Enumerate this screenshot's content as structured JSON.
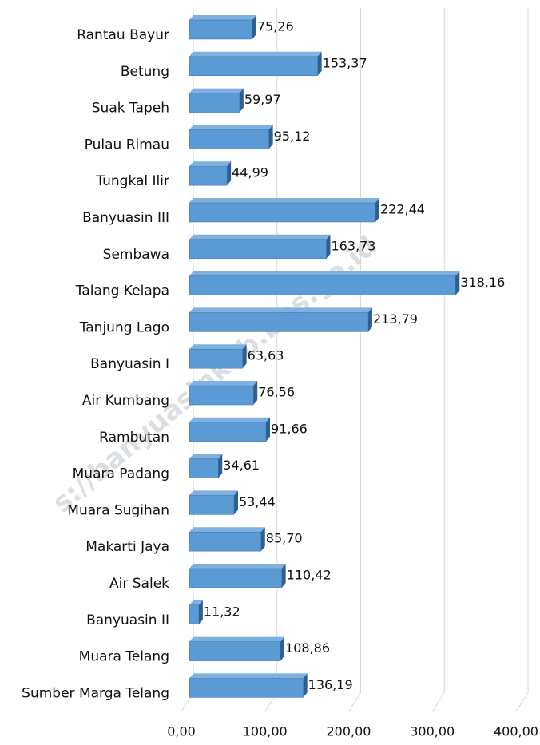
{
  "chart_data": {
    "type": "bar3d_horizontal",
    "categories": [
      "Rantau Bayur",
      "Betung",
      "Suak Tapeh",
      "Pulau Rimau",
      "Tungkal Ilir",
      "Banyuasin III",
      "Sembawa",
      "Talang Kelapa",
      "Tanjung Lago",
      "Banyuasin I",
      "Air Kumbang",
      "Rambutan",
      "Muara Padang",
      "Muara Sugihan",
      "Makarti Jaya",
      "Air Salek",
      "Banyuasin II",
      "Muara Telang",
      "Sumber Marga Telang"
    ],
    "values": [
      75.26,
      153.37,
      59.97,
      95.12,
      44.99,
      222.44,
      163.73,
      318.16,
      213.79,
      63.63,
      76.56,
      91.66,
      34.61,
      53.44,
      85.7,
      110.42,
      11.32,
      108.86,
      136.19
    ],
    "value_labels": [
      "75,26",
      "153,37",
      "59,97",
      "95,12",
      "44,99",
      "222,44",
      "163,73",
      "318,16",
      "213,79",
      "63,63",
      "76,56",
      "91,66",
      "34,61",
      "53,44",
      "85,70",
      "110,42",
      "11,32",
      "108,86",
      "136,19"
    ],
    "color": "#5b9bd5",
    "xlim": [
      0,
      400
    ],
    "xticks": [
      {
        "value": 0,
        "label": "0,00"
      },
      {
        "value": 100,
        "label": "100,00"
      },
      {
        "value": 200,
        "label": "200,00"
      },
      {
        "value": 300,
        "label": "300,00"
      },
      {
        "value": 400,
        "label": "400,00"
      }
    ],
    "grid": true,
    "watermark": "s://banyuasinkab.bps.go.id"
  }
}
